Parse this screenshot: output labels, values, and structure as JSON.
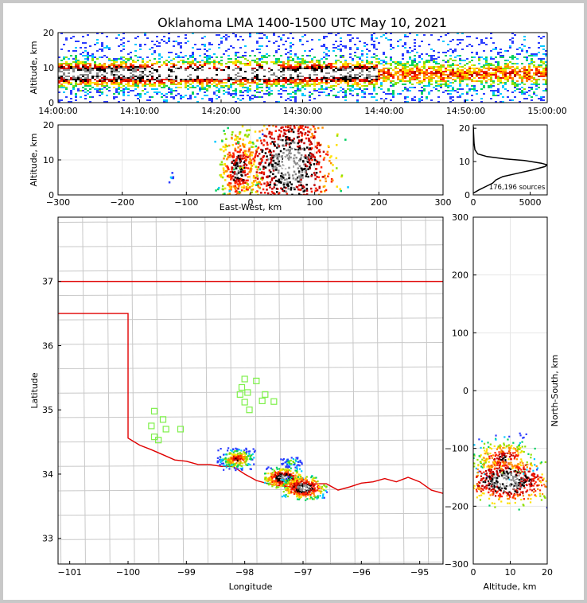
{
  "title": "Oklahoma LMA 1400-1500 UTC May 10, 2021",
  "chart_data": [
    {
      "panel": "altitude-time",
      "type": "heatmap",
      "ylabel": "Altitude, km",
      "ylim": [
        0,
        20
      ],
      "yticks": [
        "0",
        "10",
        "20"
      ],
      "xticks": [
        "14:00:00",
        "14:10:00",
        "14:20:00",
        "14:30:00",
        "14:40:00",
        "14:50:00",
        "15:00:00"
      ],
      "xlim": [
        "14:00:00",
        "15:00:00"
      ]
    },
    {
      "panel": "altitude-eastwest",
      "type": "heatmap",
      "xlabel": "East-West, km",
      "ylabel": "Altitude, km",
      "xlim": [
        -300,
        300
      ],
      "ylim": [
        0,
        20
      ],
      "xticks": [
        "−300",
        "−200",
        "−100",
        "0",
        "100",
        "200",
        "300"
      ],
      "yticks": [
        "0",
        "10",
        "20"
      ]
    },
    {
      "panel": "altitude-histogram",
      "type": "line",
      "annotation": "176,196 sources",
      "xlim": [
        0,
        6500
      ],
      "ylim": [
        0,
        21
      ],
      "xticks": [
        "0",
        "5000"
      ],
      "yticks": [
        "0",
        "10",
        "20"
      ],
      "points": [
        [
          0,
          0.5
        ],
        [
          500,
          1.5
        ],
        [
          1100,
          2.5
        ],
        [
          1700,
          3.5
        ],
        [
          2000,
          4.5
        ],
        [
          2600,
          5.5
        ],
        [
          3900,
          6.5
        ],
        [
          5200,
          7.5
        ],
        [
          6300,
          8.5
        ],
        [
          6500,
          9.0
        ],
        [
          6000,
          9.5
        ],
        [
          4500,
          10.3
        ],
        [
          2800,
          10.8
        ],
        [
          1200,
          11.5
        ],
        [
          400,
          12.3
        ],
        [
          150,
          13.5
        ],
        [
          70,
          15.5
        ],
        [
          40,
          17.5
        ],
        [
          20,
          19
        ],
        [
          10,
          20.5
        ]
      ]
    },
    {
      "panel": "plan-view",
      "type": "heatmap",
      "xlabel": "Longitude",
      "ylabel": "Latitude",
      "xlim": [
        -101.2,
        -94.6
      ],
      "ylim": [
        32.6,
        38.0
      ],
      "xticks": [
        "−101",
        "−100",
        "−99",
        "−98",
        "−97",
        "−96",
        "−95"
      ],
      "yticks": [
        "33",
        "34",
        "35",
        "36",
        "37"
      ],
      "stations": [
        [
          -99.55,
          34.98
        ],
        [
          -99.4,
          34.85
        ],
        [
          -99.6,
          34.75
        ],
        [
          -99.35,
          34.7
        ],
        [
          -99.1,
          34.7
        ],
        [
          -99.55,
          34.58
        ],
        [
          -99.48,
          34.53
        ],
        [
          -98.0,
          35.48
        ],
        [
          -97.8,
          35.45
        ],
        [
          -98.05,
          35.35
        ],
        [
          -97.95,
          35.27
        ],
        [
          -98.08,
          35.24
        ],
        [
          -97.65,
          35.24
        ],
        [
          -97.7,
          35.14
        ],
        [
          -98.0,
          35.12
        ],
        [
          -97.5,
          35.13
        ],
        [
          -97.92,
          35.0
        ]
      ]
    },
    {
      "panel": "northsouth-altitude",
      "type": "heatmap",
      "xlabel": "Altitude, km",
      "ylabel": "North-South, km",
      "xlim": [
        0,
        20
      ],
      "ylim": [
        -300,
        300
      ],
      "xticks": [
        "0",
        "10",
        "20"
      ],
      "yticks": [
        "−300",
        "−200",
        "−100",
        "0",
        "100",
        "200",
        "300"
      ]
    }
  ]
}
